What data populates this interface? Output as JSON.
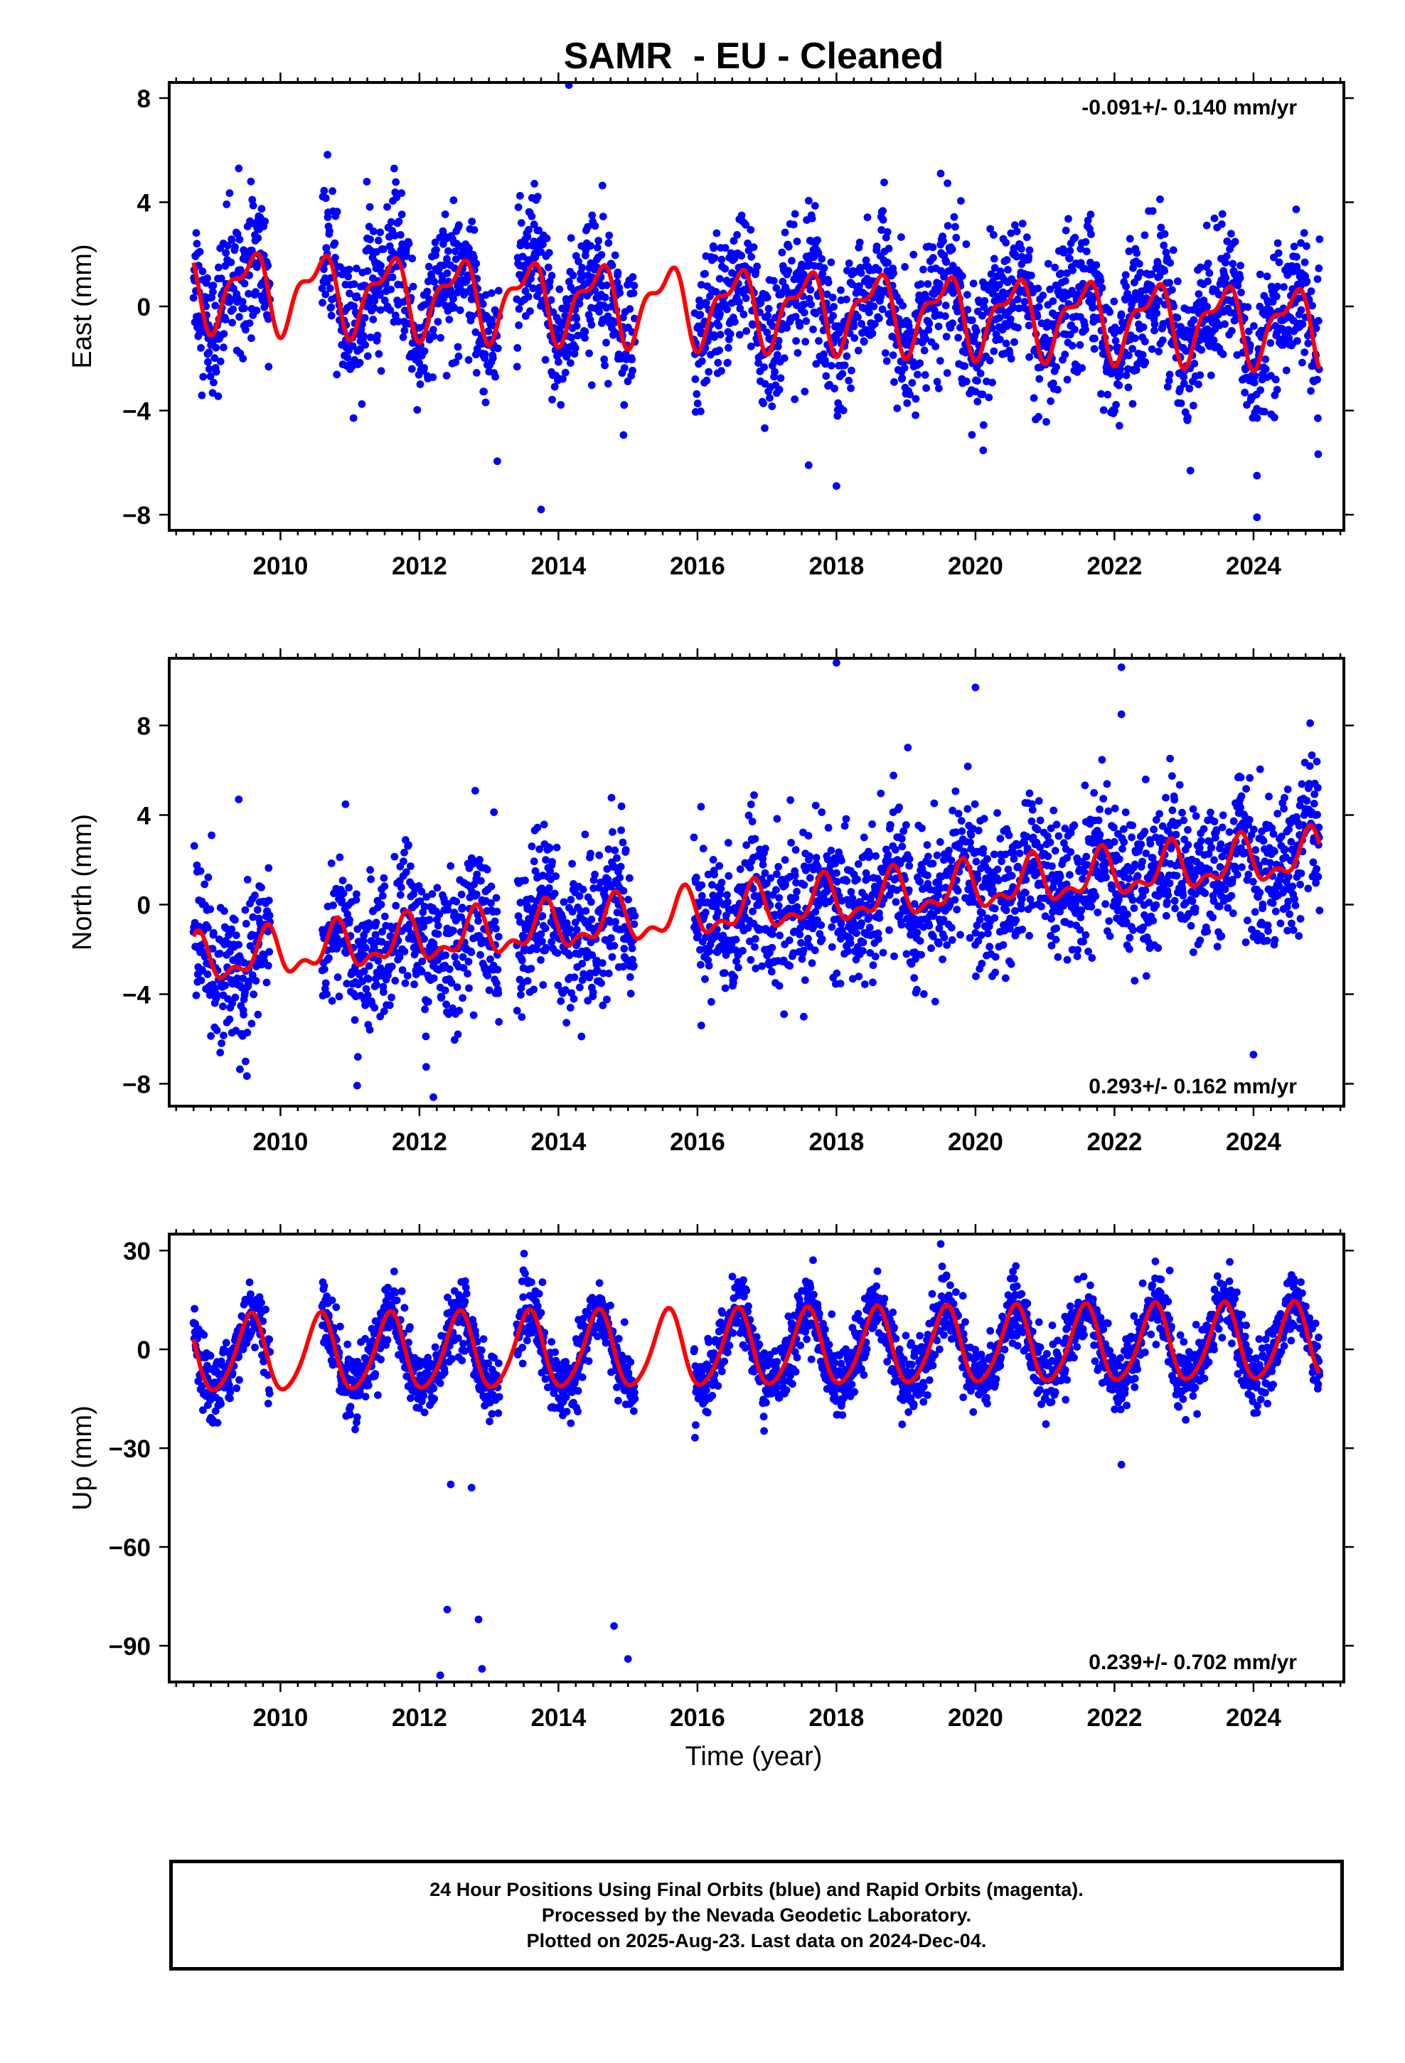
{
  "title": "SAMR  - EU - Cleaned",
  "xlabel": "Time (year)",
  "footer": {
    "line1": "24 Hour Positions Using Final Orbits (blue) and Rapid Orbits (magenta).",
    "line2": "Processed by the Nevada Geodetic Laboratory.",
    "line3": "Plotted on 2025-Aug-23. Last data on 2024-Dec-04."
  },
  "colors": {
    "data": "#0000ff",
    "model": "#ff0000",
    "axis": "#000000"
  },
  "chart_data": [
    {
      "type": "scatter",
      "ylabel": "East (mm)",
      "rate": "-0.091+/- 0.140 mm/yr",
      "rate_position": "top-right",
      "xlim": [
        2008.4,
        2025.3
      ],
      "ylim": [
        -8.6,
        8.6
      ],
      "xticks": [
        2010,
        2012,
        2014,
        2016,
        2018,
        2020,
        2022,
        2024
      ],
      "yticks": [
        -8,
        -4,
        0,
        4,
        8
      ],
      "segments": [
        [
          2008.75,
          2009.85
        ],
        [
          2010.6,
          2013.15
        ],
        [
          2013.4,
          2015.1
        ],
        [
          2015.95,
          2024.95
        ]
      ],
      "model": {
        "slope": -0.091,
        "offset": 0.0,
        "annual_amp": 1.3,
        "annual_phase": 0.3,
        "semi_amp": 0.6,
        "semi_phase": 0.1
      },
      "scatter_sd": 1.3,
      "outliers": [
        [
          2014.15,
          8.5
        ],
        [
          2013.75,
          -7.8
        ],
        [
          2024.05,
          -8.1
        ],
        [
          2024.05,
          -6.5
        ],
        [
          2018.0,
          -6.9
        ],
        [
          2017.6,
          -6.1
        ],
        [
          2019.5,
          5.1
        ],
        [
          2009.4,
          5.3
        ]
      ]
    },
    {
      "type": "scatter",
      "ylabel": "North (mm)",
      "rate": "0.293+/- 0.162 mm/yr",
      "rate_position": "bottom-right",
      "xlim": [
        2008.4,
        2025.3
      ],
      "ylim": [
        -9.0,
        11.0
      ],
      "xticks": [
        2010,
        2012,
        2014,
        2016,
        2018,
        2020,
        2022,
        2024
      ],
      "yticks": [
        -8,
        -4,
        0,
        4,
        8
      ],
      "segments": [
        [
          2008.75,
          2009.85
        ],
        [
          2010.6,
          2013.15
        ],
        [
          2013.4,
          2015.1
        ],
        [
          2015.95,
          2024.95
        ]
      ],
      "model": {
        "slope": 0.293,
        "offset": -0.3,
        "annual_amp": 0.9,
        "annual_phase": 0.55,
        "semi_amp": 0.5,
        "semi_phase": 0.2
      },
      "scatter_sd": 1.6,
      "outliers": [
        [
          2009.4,
          4.7
        ],
        [
          2018.0,
          10.8
        ],
        [
          2022.1,
          10.6
        ],
        [
          2020.0,
          9.7
        ],
        [
          2022.1,
          8.5
        ],
        [
          2012.2,
          -8.6
        ],
        [
          2024.0,
          -6.7
        ],
        [
          2013.8,
          2.7
        ]
      ]
    },
    {
      "type": "scatter",
      "ylabel": "Up (mm)",
      "rate": "0.239+/- 0.702 mm/yr",
      "rate_position": "bottom-right",
      "xlim": [
        2008.4,
        2025.3
      ],
      "ylim": [
        -101,
        35
      ],
      "xticks": [
        2010,
        2012,
        2014,
        2016,
        2018,
        2020,
        2022,
        2024
      ],
      "yticks": [
        -90,
        -60,
        -30,
        0,
        30
      ],
      "segments": [
        [
          2008.75,
          2009.85
        ],
        [
          2010.6,
          2013.15
        ],
        [
          2013.4,
          2015.1
        ],
        [
          2015.95,
          2024.95
        ]
      ],
      "model": {
        "slope": 0.239,
        "offset": 0.0,
        "annual_amp": 11.5,
        "annual_phase": 0.32,
        "semi_amp": 1.5,
        "semi_phase": 0.0
      },
      "scatter_sd": 5.0,
      "outliers": [
        [
          2012.3,
          -99
        ],
        [
          2012.4,
          -79
        ],
        [
          2012.85,
          -82
        ],
        [
          2012.9,
          -97
        ],
        [
          2012.45,
          -41
        ],
        [
          2012.75,
          -42
        ],
        [
          2014.8,
          -84
        ],
        [
          2015.0,
          -94
        ],
        [
          2019.5,
          32
        ],
        [
          2022.1,
          -35
        ]
      ]
    }
  ]
}
